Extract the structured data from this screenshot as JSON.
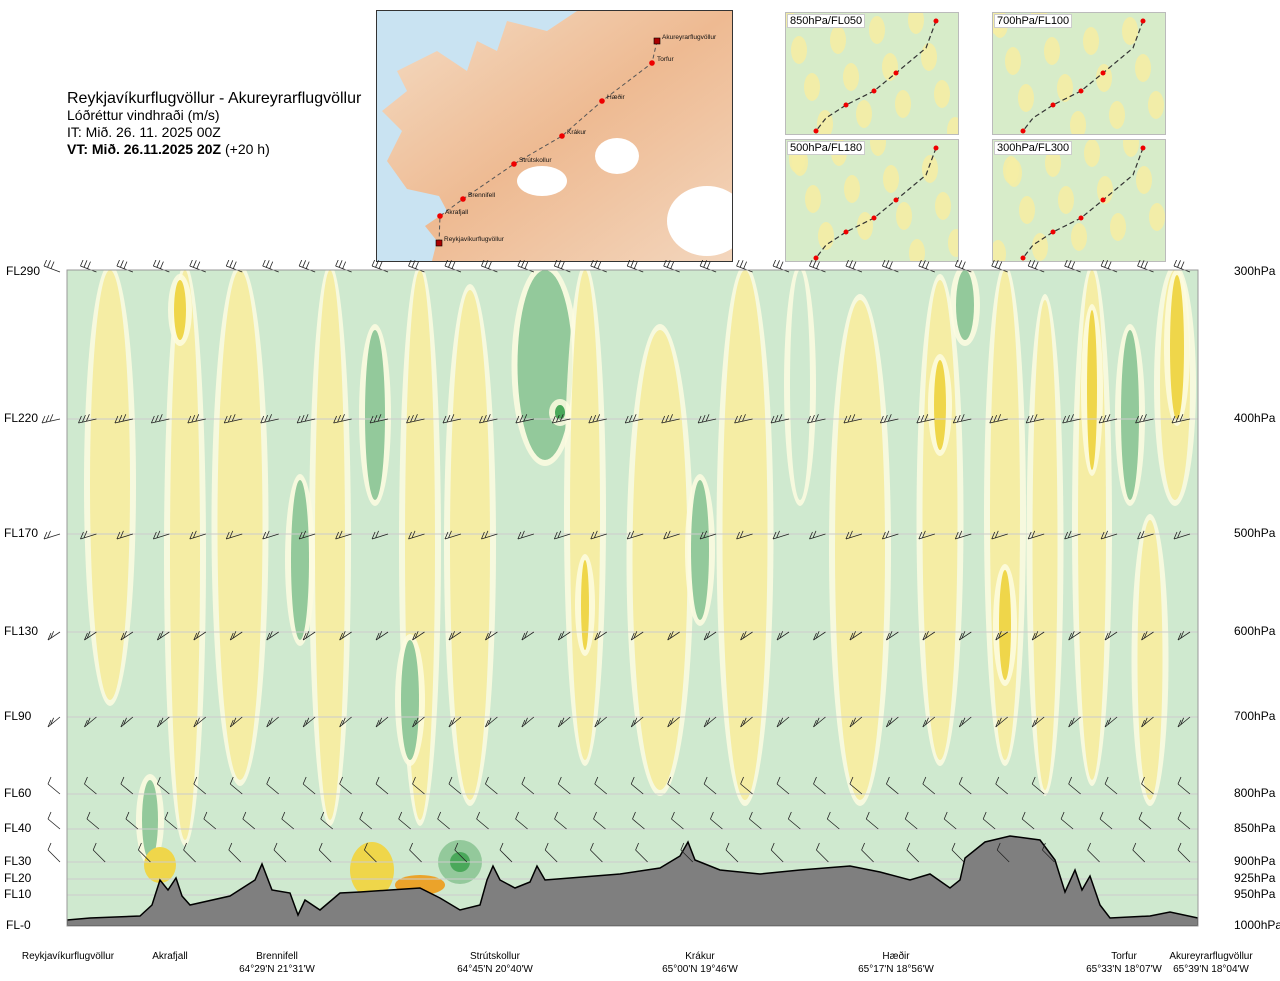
{
  "header": {
    "title": "Reykjavíkurflugvöllur - Akureyrarflugvöllur",
    "subtitle": "Lóðréttur vindhraði (m/s)",
    "issue_time": "IT: Mið. 26. 11. 2025 00Z",
    "valid_time_bold": "VT: Mið. 26.11.2025 20Z",
    "valid_time_offset": "(+20 h)"
  },
  "map": {
    "waypoints": [
      {
        "name": "Akureyrarflugvöllur"
      },
      {
        "name": "Torfur"
      },
      {
        "name": "Hæðir"
      },
      {
        "name": "Krákur"
      },
      {
        "name": "Strútskollur"
      },
      {
        "name": "Brennifell"
      },
      {
        "name": "Akrafjall"
      },
      {
        "name": "Reykjavíkurflugvöllur"
      }
    ]
  },
  "level_maps": [
    {
      "label": "850hPa/FL050"
    },
    {
      "label": "700hPa/FL100"
    },
    {
      "label": "500hPa/FL180"
    },
    {
      "label": "300hPa/FL300"
    }
  ],
  "chart_data": {
    "type": "heatmap",
    "title": "Lóðréttur vindhraði (m/s)",
    "left_axis_labels": [
      "FL290",
      "FL220",
      "FL170",
      "FL130",
      "FL90",
      "FL60",
      "FL40",
      "FL30",
      "FL20",
      "FL10",
      "FL-0"
    ],
    "right_axis_labels": [
      "300hPa",
      "400hPa",
      "500hPa",
      "600hPa",
      "700hPa",
      "800hPa",
      "850hPa",
      "900hPa",
      "925hPa",
      "950hPa",
      "1000hPa"
    ],
    "pressure_levels_hpa": [
      300,
      400,
      500,
      600,
      700,
      800,
      850,
      900,
      925,
      950,
      1000
    ],
    "x_locations": [
      {
        "name": "Reykjavíkurflugvöllur",
        "coord": ""
      },
      {
        "name": "Akrafjall",
        "coord": ""
      },
      {
        "name": "Brennifell",
        "coord": "64°29'N 21°31'W"
      },
      {
        "name": "Strútskollur",
        "coord": "64°45'N 20°40'W"
      },
      {
        "name": "Krákur",
        "coord": "65°00'N 19°46'W"
      },
      {
        "name": "Hæðir",
        "coord": "65°17'N 18°56'W"
      },
      {
        "name": "Torfur",
        "coord": "65°33'N 18°07'W"
      },
      {
        "name": "Akureyrarflugvöllur",
        "coord": "65°39'N 18°04'W"
      }
    ],
    "colors": {
      "strong_down": "#4aa85a",
      "moderate_down": "#93c99b",
      "weak_down": "#cfe9cf",
      "near_zero": "#fdfbe0",
      "weak_up": "#f5eda4",
      "moderate_up": "#efd64a",
      "strong_up": "#eba32a",
      "terrain": "#7f7f7f"
    }
  }
}
